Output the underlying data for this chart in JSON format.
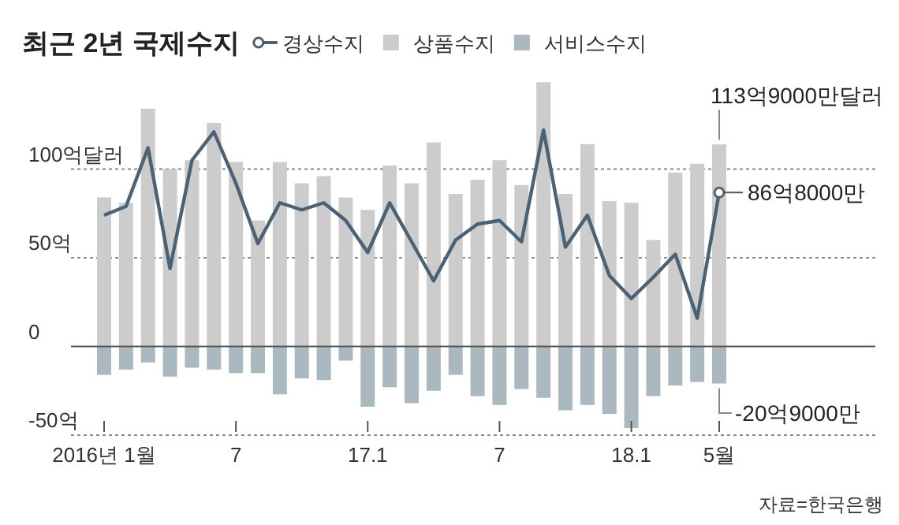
{
  "chart_data": {
    "type": "bar",
    "title": "최근 2년 국제수지",
    "categories": [
      "2016년 1월",
      null,
      null,
      null,
      null,
      null,
      "7",
      null,
      null,
      null,
      null,
      null,
      "17.1",
      null,
      null,
      null,
      null,
      null,
      "7",
      null,
      null,
      null,
      null,
      null,
      "18.1",
      null,
      null,
      null,
      "5월"
    ],
    "stacked": true,
    "legend": "top",
    "grid": "y",
    "marker": "none",
    "line_style": "solid",
    "ylim": [
      -50,
      150
    ],
    "yticks": [
      {
        "value": -50,
        "label": "-50억"
      },
      0,
      {
        "value": 50,
        "label": "50억"
      },
      {
        "value": 100,
        "label": "100억달러"
      }
    ],
    "series": [
      {
        "name": "경상수지",
        "type": "line",
        "color": "#4a6275",
        "values": [
          74,
          79,
          112,
          44,
          105,
          121,
          92,
          58,
          81,
          77,
          81,
          71,
          53,
          81,
          59,
          37,
          60,
          69,
          71,
          59,
          122,
          56,
          74,
          40,
          27,
          39,
          52,
          16,
          86.8
        ]
      },
      {
        "name": "상품수지",
        "color": "#cccccc",
        "values": [
          84,
          81,
          134,
          100,
          105,
          126,
          104,
          71,
          104,
          92,
          96,
          84,
          77,
          102,
          92,
          115,
          86,
          94,
          105,
          91,
          149,
          86,
          114,
          82,
          81,
          60,
          98,
          103,
          113.9
        ]
      },
      {
        "name": "서비스수지",
        "color": "#a9b9bf",
        "values": [
          -16,
          -13,
          -9,
          -17,
          -12,
          -13,
          -15,
          -15,
          -27,
          -18,
          -19,
          -8,
          -34,
          -23,
          -32,
          -25,
          -16,
          -28,
          -33,
          -24,
          -29,
          -36,
          -33,
          -38,
          -46,
          -28,
          -22,
          -20,
          -20.9
        ]
      }
    ],
    "annotations": [
      {
        "text": "113억9000만달러",
        "x": "5월",
        "y": 113.9
      },
      {
        "text": "86억8000만",
        "x": "5월",
        "y": 86.8
      },
      {
        "text": "-20억9000만",
        "x": "5월",
        "y": -20.9
      },
      "자료=한국은행"
    ]
  }
}
